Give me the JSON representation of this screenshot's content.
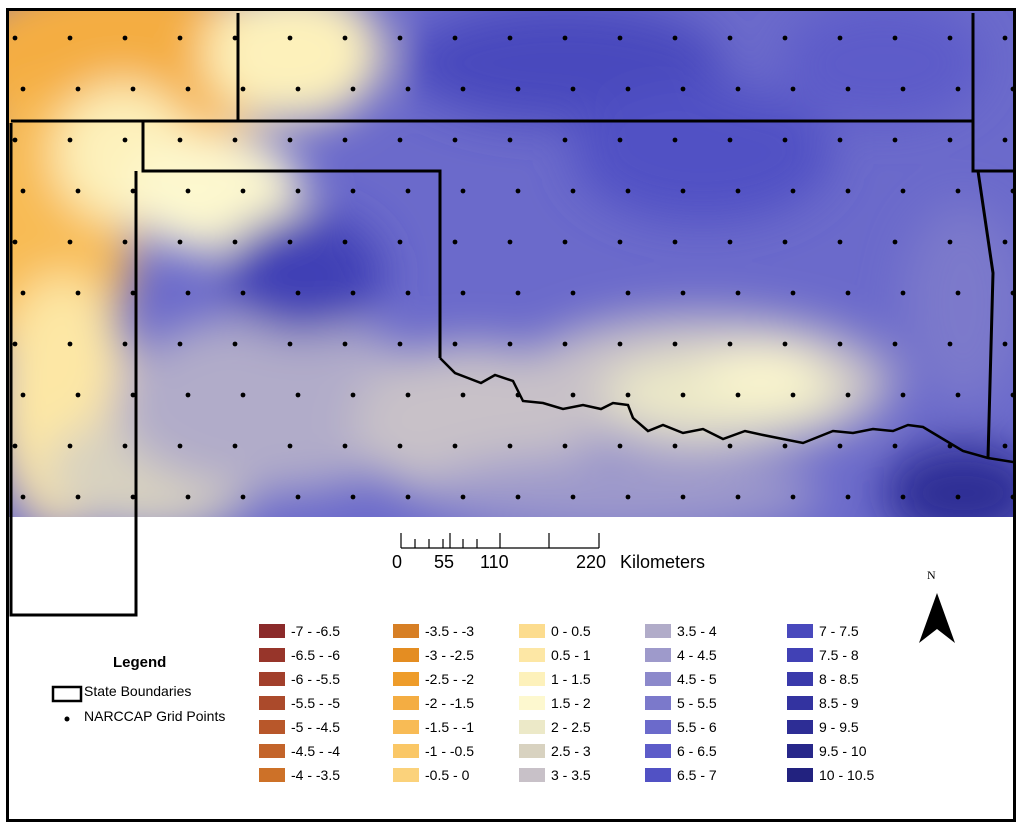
{
  "map": {
    "north_label": "N"
  },
  "scale_bar": {
    "ticks": [
      "0",
      "55",
      "110",
      "220"
    ],
    "unit": "Kilometers"
  },
  "legend": {
    "title": "Legend",
    "state_boundaries_label": "State Boundaries",
    "grid_points_label": "NARCCAP Grid Points",
    "classes": [
      {
        "label": "-7 - -6.5",
        "color": "#8b2a2a"
      },
      {
        "label": "-6.5 - -6",
        "color": "#97352a"
      },
      {
        "label": "-6 - -5.5",
        "color": "#a23f2b"
      },
      {
        "label": "-5.5 - -5",
        "color": "#ab4a2b"
      },
      {
        "label": "-5 - -4.5",
        "color": "#b8572a"
      },
      {
        "label": "-4.5 - -4",
        "color": "#c3642a"
      },
      {
        "label": "-4 - -3.5",
        "color": "#cd7128"
      },
      {
        "label": "-3.5 - -3",
        "color": "#d77f25"
      },
      {
        "label": "-3 - -2.5",
        "color": "#e48d22"
      },
      {
        "label": "-2.5 - -2",
        "color": "#ee9c2a"
      },
      {
        "label": "-2 - -1.5",
        "color": "#f4ad42"
      },
      {
        "label": "-1.5 - -1",
        "color": "#f8bb55"
      },
      {
        "label": "-1 - -0.5",
        "color": "#fac766"
      },
      {
        "label": "-0.5 - 0",
        "color": "#fbd27b"
      },
      {
        "label": "0 - 0.5",
        "color": "#fcdc8e"
      },
      {
        "label": "0.5 - 1",
        "color": "#fde7a5"
      },
      {
        "label": "1 - 1.5",
        "color": "#fdf1bb"
      },
      {
        "label": "1.5 - 2",
        "color": "#fdf8cf"
      },
      {
        "label": "2 - 2.5",
        "color": "#ece9c8"
      },
      {
        "label": "2.5 - 3",
        "color": "#d8d2c0"
      },
      {
        "label": "3 - 3.5",
        "color": "#c8c1c8"
      },
      {
        "label": "3.5 - 4",
        "color": "#b1acc9"
      },
      {
        "label": "4 - 4.5",
        "color": "#9e9acb"
      },
      {
        "label": "4.5 - 5",
        "color": "#8c89cb"
      },
      {
        "label": "5 - 5.5",
        "color": "#7b79cb"
      },
      {
        "label": "5.5 - 6",
        "color": "#6b6acb"
      },
      {
        "label": "6 - 6.5",
        "color": "#5d5cc9"
      },
      {
        "label": "6.5 - 7",
        "color": "#5151c4"
      },
      {
        "label": "7 - 7.5",
        "color": "#4949bd"
      },
      {
        "label": "7.5 - 8",
        "color": "#4141b5"
      },
      {
        "label": "8 - 8.5",
        "color": "#3a3aab"
      },
      {
        "label": "8.5 - 9",
        "color": "#3333a0"
      },
      {
        "label": "9 - 9.5",
        "color": "#2d2d95"
      },
      {
        "label": "9.5 - 10",
        "color": "#27278a"
      },
      {
        "label": "10 - 10.5",
        "color": "#22227f"
      }
    ]
  }
}
